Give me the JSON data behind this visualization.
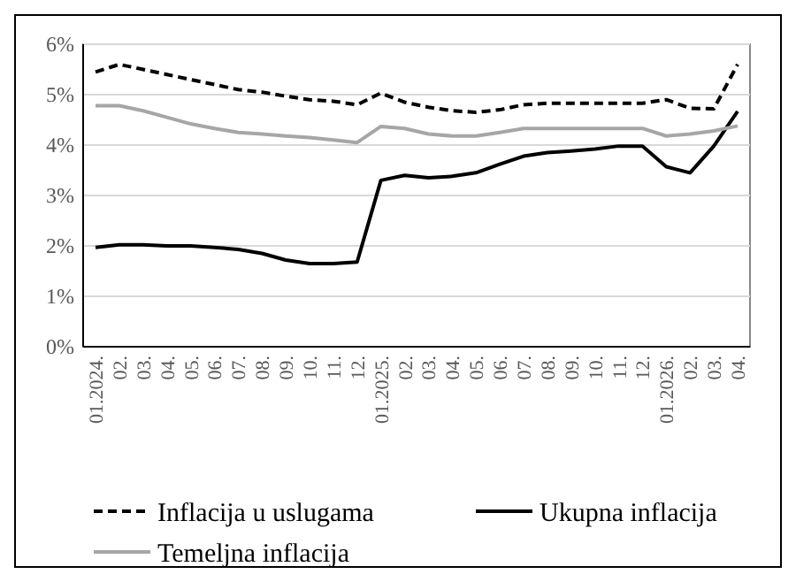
{
  "chart_data": {
    "type": "line",
    "categories": [
      "01.2024.",
      "02.",
      "03.",
      "04.",
      "05.",
      "06.",
      "07.",
      "08.",
      "09.",
      "10.",
      "11.",
      "12.",
      "01.2025.",
      "02.",
      "03.",
      "04.",
      "05.",
      "06.",
      "07.",
      "08.",
      "09.",
      "10.",
      "11.",
      "12.",
      "01.2026.",
      "02.",
      "03.",
      "04."
    ],
    "series": [
      {
        "name": "Inflacija u uslugama",
        "color": "#000000",
        "line_style": "dashed",
        "values": [
          5.45,
          5.6,
          5.5,
          5.4,
          5.3,
          5.2,
          5.1,
          5.05,
          4.97,
          4.9,
          4.87,
          4.8,
          5.03,
          4.85,
          4.75,
          4.68,
          4.65,
          4.7,
          4.8,
          4.83,
          4.83,
          4.83,
          4.83,
          4.83,
          4.9,
          4.73,
          4.72,
          5.6
        ]
      },
      {
        "name": "Ukupna inflacija",
        "color": "#000000",
        "line_style": "solid",
        "values": [
          1.97,
          2.02,
          2.02,
          2.0,
          2.0,
          1.97,
          1.93,
          1.85,
          1.72,
          1.65,
          1.65,
          1.68,
          3.3,
          3.4,
          3.35,
          3.38,
          3.45,
          3.62,
          3.78,
          3.85,
          3.88,
          3.92,
          3.98,
          3.98,
          3.57,
          3.45,
          3.98,
          4.67
        ]
      },
      {
        "name": "Temeljna inflacija",
        "color": "#a6a6a6",
        "line_style": "solid",
        "values": [
          4.78,
          4.78,
          4.68,
          4.55,
          4.42,
          4.33,
          4.25,
          4.22,
          4.18,
          4.15,
          4.1,
          4.05,
          4.37,
          4.33,
          4.22,
          4.18,
          4.18,
          4.25,
          4.33,
          4.33,
          4.33,
          4.33,
          4.33,
          4.33,
          4.18,
          4.22,
          4.28,
          4.38
        ]
      }
    ],
    "ylim": [
      0,
      6
    ],
    "yticks": [
      {
        "value": 0,
        "label": "0%"
      },
      {
        "value": 1,
        "label": "1%"
      },
      {
        "value": 2,
        "label": "2%"
      },
      {
        "value": 3,
        "label": "3%"
      },
      {
        "value": 4,
        "label": "4%"
      },
      {
        "value": 5,
        "label": "5%"
      },
      {
        "value": 6,
        "label": "6%"
      }
    ],
    "grid": "y",
    "legend": "bottom"
  }
}
